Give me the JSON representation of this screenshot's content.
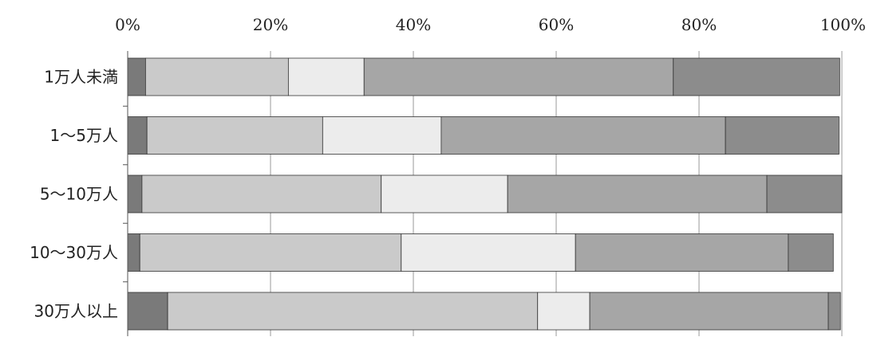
{
  "chart_data": {
    "type": "bar",
    "orientation": "horizontal",
    "stacked": true,
    "title": "",
    "xlabel": "",
    "ylabel": "",
    "xlim": [
      0,
      100
    ],
    "x_ticks": [
      "0%",
      "20%",
      "40%",
      "60%",
      "80%",
      "100%"
    ],
    "grid": "vertical",
    "legend": "none",
    "categories": [
      "1万人未満",
      "1～5万人",
      "5～10万人",
      "10～30万人",
      "30万人以上"
    ],
    "series": [
      {
        "color": "#7a7a7a",
        "values": [
          2.5,
          2.7,
          2.0,
          1.7,
          5.6
        ]
      },
      {
        "color": "#cacaca",
        "values": [
          20.0,
          24.6,
          33.5,
          36.6,
          51.8
        ]
      },
      {
        "color": "#ececec",
        "values": [
          10.6,
          16.6,
          17.7,
          24.4,
          7.3
        ]
      },
      {
        "color": "#a6a6a6",
        "values": [
          43.3,
          39.8,
          36.3,
          29.8,
          33.4
        ]
      },
      {
        "color": "#8c8c8c",
        "values": [
          23.3,
          15.9,
          10.5,
          6.3,
          1.7
        ]
      }
    ]
  }
}
